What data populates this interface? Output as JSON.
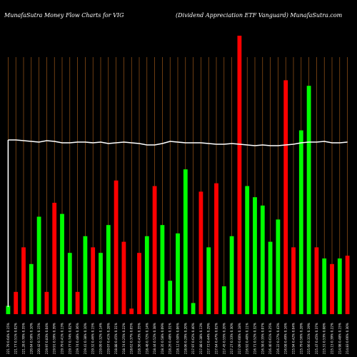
{
  "header": {
    "left": "MunafaSutra  Money Flow  Charts for VIG",
    "right": "(Dividend Appreciation  ETF Vanguard) MunafaSutra.com"
  },
  "colors": {
    "background": "#000000",
    "positive": "#00ff00",
    "negative": "#ff0000",
    "grid": "#b5651d",
    "price_line": "#ffffff"
  },
  "chart_data": {
    "type": "bar",
    "title": "MunafaSutra  Money Flow  Charts for VIG",
    "subtitle": "(Dividend Appreciation  ETF Vanguard) MunafaSutra.com",
    "grid": true,
    "ylim": [
      0,
      100
    ],
    "categories": [
      "221.79 0.64% 0.15%",
      "221.77 0.51% 0.02%",
      "221.28 0.70% 0.35%",
      "220.64 0.58% 0.10%",
      "220.42 0.71% 0.15%",
      "219.97 0.83% 0.04%",
      "219.91 0.59% 0.39%",
      "219.79 0.41% 0.13%",
      "219.77 0.74% 0.02%",
      "219.74 0.48% 0.36%",
      "219.41 0.38% 0.10%",
      "219.32 0.46% 0.15%",
      "219.09 0.32% 0.14%",
      "219.07 0.41% 0.28%",
      "218.88 0.45% 0.31%",
      "218.74 0.25% 0.22%",
      "218.62 0.37% 0.05%",
      "218.56 0.43% 0.35%",
      "218.48 0.72% 0.14%",
      "218.44 0.52% 0.38%",
      "218.35 0.58% 0.09%",
      "218.26 0.48% 0.31%",
      "218.12 0.50% 0.06%",
      "218.06 0.29% 0.20%",
      "217.97 0.62% 0.40%",
      "217.88 0.38% 0.13%",
      "217.72 0.44% 0.29%",
      "217.64 0.47% 0.02%",
      "217.45 0.55% 0.20%",
      "217.27 0.33% 0.30%",
      "217.09 0.60% 0.18%",
      "216.92 0.40% 0.11%",
      "216.71 0.52% 0.32%",
      "216.58 0.35% 0.07%",
      "216.40 0.61% 0.25%",
      "216.22 0.27% 0.43%",
      "216.08 0.49% 0.16%",
      "215.94 0.42% 0.04%",
      "215.79 0.56% 0.28%",
      "215.66 0.31% 0.19%",
      "215.47 0.45% 0.37%",
      "215.31 0.53% 0.08%",
      "215.15 0.39% 0.22%",
      "214.98 0.48% 0.15%",
      "214.83 0.66% 0.30%"
    ],
    "series": [
      {
        "values": [
          3,
          8,
          24,
          18,
          35,
          8,
          40,
          36,
          22,
          8,
          28,
          24,
          22,
          32,
          48,
          26,
          2,
          22,
          28,
          46,
          32,
          12,
          29,
          52,
          4,
          44,
          24,
          47,
          10,
          28,
          100,
          46,
          42,
          39,
          26,
          34,
          84,
          24,
          66,
          82,
          24,
          20,
          18,
          20,
          21
        ],
        "colors": [
          "g",
          "r",
          "r",
          "g",
          "g",
          "r",
          "r",
          "g",
          "g",
          "r",
          "g",
          "r",
          "g",
          "g",
          "r",
          "r",
          "r",
          "r",
          "g",
          "r",
          "g",
          "g",
          "g",
          "g",
          "g",
          "r",
          "g",
          "r",
          "g",
          "g",
          "r",
          "g",
          "g",
          "g",
          "g",
          "g",
          "r",
          "r",
          "g",
          "g",
          "r",
          "g",
          "r",
          "g",
          "r"
        ]
      }
    ],
    "price_line": [
      200,
      200,
      199,
      198,
      197,
      199,
      198,
      196,
      196,
      197,
      197,
      196,
      197,
      195,
      196,
      197,
      196,
      195,
      193,
      193,
      195,
      198,
      197,
      196,
      196,
      196,
      195,
      194,
      194,
      195,
      194,
      193,
      192,
      193,
      192,
      192,
      193,
      194,
      196,
      197,
      197,
      198,
      196,
      196,
      197
    ]
  }
}
